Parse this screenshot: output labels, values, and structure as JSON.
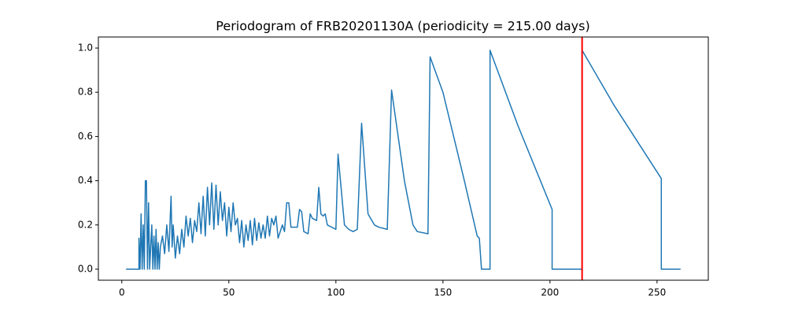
{
  "chart_data": {
    "type": "line",
    "title": "Periodogram of FRB20201130A (periodicity = 215.00 days)",
    "x": [
      2,
      8,
      8,
      8.5,
      9,
      9.5,
      10,
      10.5,
      11,
      11.5,
      12,
      12.5,
      13,
      14,
      14.5,
      15,
      15.5,
      16,
      16.5,
      17,
      17.5,
      18,
      19,
      20,
      21,
      22,
      23,
      23.5,
      24,
      25,
      26,
      27,
      28,
      29,
      30,
      31,
      32,
      33,
      34,
      35,
      36,
      37,
      38,
      39,
      40,
      41,
      42,
      43,
      44,
      45,
      46,
      47,
      48,
      49,
      50,
      51,
      52,
      53,
      54,
      55,
      56,
      57,
      58,
      59,
      60,
      61,
      62,
      63,
      64,
      65,
      66,
      67,
      68,
      69,
      70,
      71,
      72,
      73,
      75,
      76,
      77,
      78,
      79,
      82,
      83,
      84,
      85,
      87,
      88,
      89,
      91,
      92,
      93,
      94,
      95,
      96,
      100,
      101,
      104,
      106,
      108,
      110,
      112,
      115,
      118,
      120,
      124,
      126,
      132,
      136,
      138,
      143,
      144,
      150,
      160,
      166,
      167,
      168,
      172,
      172,
      185,
      201,
      201,
      215,
      215,
      230,
      252,
      252,
      261
    ],
    "series": [
      {
        "name": "periodogram",
        "color": "#1f77b4",
        "values": [
          0,
          0,
          0.14,
          0,
          0.25,
          0,
          0.2,
          0,
          0.4,
          0.4,
          0,
          0.3,
          0,
          0.2,
          0,
          0.15,
          0,
          0.18,
          0,
          0.12,
          0,
          0.1,
          0.15,
          0.07,
          0.2,
          0.08,
          0.33,
          0.1,
          0.2,
          0.05,
          0.15,
          0.07,
          0.18,
          0.1,
          0.24,
          0.15,
          0.23,
          0.12,
          0.22,
          0.17,
          0.3,
          0.16,
          0.33,
          0.15,
          0.37,
          0.2,
          0.39,
          0.18,
          0.38,
          0.2,
          0.35,
          0.22,
          0.3,
          0.15,
          0.28,
          0.17,
          0.3,
          0.2,
          0.23,
          0.12,
          0.22,
          0.1,
          0.2,
          0.13,
          0.22,
          0.11,
          0.23,
          0.13,
          0.21,
          0.14,
          0.2,
          0.14,
          0.24,
          0.15,
          0.23,
          0.2,
          0.24,
          0.14,
          0.2,
          0.17,
          0.3,
          0.3,
          0.19,
          0.19,
          0.27,
          0.26,
          0.17,
          0.16,
          0.25,
          0.23,
          0.22,
          0.37,
          0.25,
          0.24,
          0.25,
          0.2,
          0.18,
          0.52,
          0.2,
          0.18,
          0.17,
          0.18,
          0.66,
          0.25,
          0.2,
          0.19,
          0.18,
          0.81,
          0.4,
          0.2,
          0.17,
          0.16,
          0.96,
          0.8,
          0.4,
          0.15,
          0.14,
          0,
          0,
          0.99,
          0.65,
          0.27,
          0,
          0,
          0.99,
          0.74,
          0.41,
          0,
          0
        ]
      }
    ],
    "marker_x": 215,
    "marker_color": "red",
    "xlim": [
      -10.95,
      273.95
    ],
    "xticks": [
      0,
      50,
      100,
      150,
      200,
      250
    ],
    "ylim": [
      -0.05,
      1.05
    ],
    "yticks": [
      {
        "value": 0,
        "label": "0.0"
      },
      0.2,
      0.4,
      0.6,
      0.8,
      {
        "value": 1,
        "label": "1.0"
      }
    ]
  }
}
